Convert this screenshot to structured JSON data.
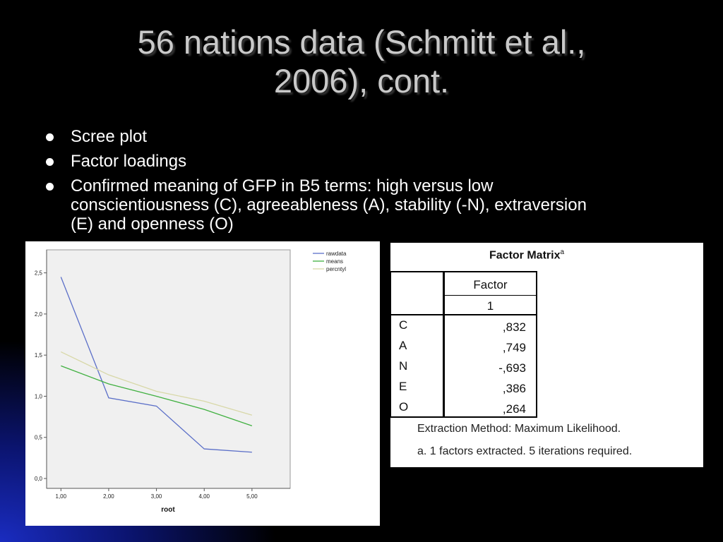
{
  "slide": {
    "title_line1": "56 nations data (Schmitt et al.,",
    "title_line2": "2006), cont.",
    "bullets": [
      "Scree plot",
      "Factor loadings",
      "Confirmed meaning of GFP in B5 terms: high versus low conscientiousness (C), agreeableness (A), stability (-N), extraversion (E) and openness (O)"
    ]
  },
  "chart_data": {
    "type": "line",
    "xlabel": "root",
    "ylabel": "",
    "x": [
      1,
      2,
      3,
      4,
      5
    ],
    "x_tick_labels": [
      "1,00",
      "2,00",
      "3,00",
      "4,00",
      "5,00"
    ],
    "y_ticks": [
      0,
      0.5,
      1.0,
      1.5,
      2.0,
      2.5
    ],
    "y_tick_labels": [
      "0,0",
      "0,5",
      "1,0",
      "1,5",
      "2,0",
      "2,5"
    ],
    "xlim": [
      0.7,
      5.8
    ],
    "ylim": [
      -0.12,
      2.78
    ],
    "grid": false,
    "legend_position": "top-right",
    "series": [
      {
        "name": "rawdata",
        "color": "#5b6fc8",
        "values": [
          2.45,
          0.98,
          0.88,
          0.36,
          0.32
        ]
      },
      {
        "name": "means",
        "color": "#40b040",
        "values": [
          1.37,
          1.15,
          1.0,
          0.84,
          0.64
        ]
      },
      {
        "name": "percntyl",
        "color": "#d8d8a8",
        "values": [
          1.54,
          1.26,
          1.06,
          0.94,
          0.77
        ]
      }
    ]
  },
  "factor_matrix": {
    "title": "Factor Matrix",
    "title_superscript": "a",
    "header": "Factor",
    "subheader": "1",
    "rows": [
      {
        "label": "C",
        "value": ",832"
      },
      {
        "label": "A",
        "value": ",749"
      },
      {
        "label": "N",
        "value": "-,693"
      },
      {
        "label": "E",
        "value": ",386"
      },
      {
        "label": "O",
        "value": ",264"
      }
    ],
    "extraction_note": "Extraction Method: Maximum Likelihood.",
    "footnote": "a. 1 factors extracted. 5 iterations required."
  }
}
